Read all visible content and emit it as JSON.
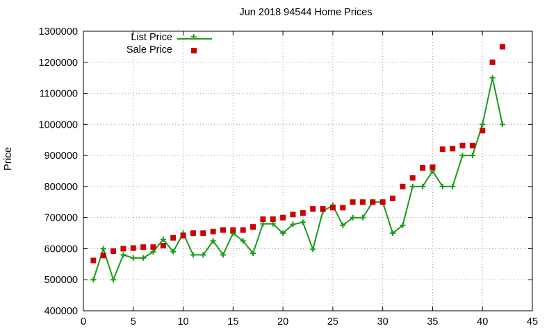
{
  "chart_data": {
    "type": "line",
    "title": "Jun 2018 94544 Home Prices",
    "xlabel": "",
    "ylabel": "Price",
    "xlim": [
      0,
      45
    ],
    "ylim": [
      400000,
      1300000
    ],
    "x_ticks": [
      0,
      5,
      10,
      15,
      20,
      25,
      30,
      35,
      40,
      45
    ],
    "y_ticks": [
      400000,
      500000,
      600000,
      700000,
      800000,
      900000,
      1000000,
      1100000,
      1200000,
      1300000
    ],
    "grid": true,
    "legend_position": "top-left",
    "colors": {
      "list": "#1a9a1a",
      "sale": "#cc0000"
    },
    "series": [
      {
        "name": "List Price",
        "style": "line-plus",
        "x": [
          1,
          2,
          3,
          4,
          5,
          6,
          7,
          8,
          9,
          10,
          11,
          12,
          13,
          14,
          15,
          16,
          17,
          18,
          19,
          20,
          21,
          22,
          23,
          24,
          25,
          26,
          27,
          28,
          29,
          30,
          31,
          32,
          33,
          34,
          35,
          36,
          37,
          38,
          39,
          40,
          41,
          42
        ],
        "values": [
          500000,
          600000,
          500000,
          580000,
          570000,
          570000,
          590000,
          630000,
          590000,
          650000,
          580000,
          580000,
          625000,
          580000,
          650000,
          625000,
          585000,
          680000,
          680000,
          650000,
          678000,
          685000,
          598000,
          720000,
          740000,
          675000,
          700000,
          700000,
          750000,
          750000,
          650000,
          675000,
          800000,
          800000,
          850000,
          800000,
          800000,
          900000,
          900000,
          1000000,
          1150000,
          1000000
        ]
      },
      {
        "name": "Sale Price",
        "style": "points-square",
        "x": [
          1,
          2,
          3,
          4,
          5,
          6,
          7,
          8,
          9,
          10,
          11,
          12,
          13,
          14,
          15,
          16,
          17,
          18,
          19,
          20,
          21,
          22,
          23,
          24,
          25,
          26,
          27,
          28,
          29,
          30,
          31,
          32,
          33,
          34,
          35,
          36,
          37,
          38,
          39,
          40,
          41,
          42
        ],
        "values": [
          562000,
          578000,
          592000,
          600000,
          602000,
          605000,
          605000,
          610000,
          635000,
          642000,
          650000,
          650000,
          655000,
          660000,
          660000,
          660000,
          670000,
          695000,
          695000,
          700000,
          710000,
          715000,
          728000,
          728000,
          732000,
          732000,
          750000,
          750000,
          750000,
          750000,
          762000,
          800000,
          828000,
          860000,
          862000,
          920000,
          922000,
          932000,
          932000,
          980000,
          1200000,
          1250000
        ]
      }
    ]
  }
}
